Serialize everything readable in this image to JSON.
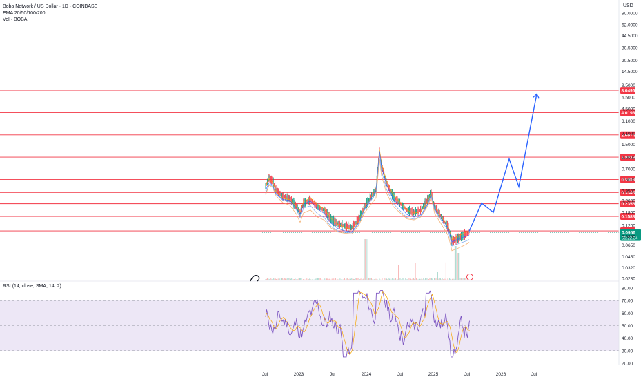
{
  "header": {
    "title": "Boba Network / US Dollar · 1D · COINBASE",
    "ema": "EMA 20/50/100/200",
    "vol": "Vol · BOBA",
    "currency": "USD"
  },
  "rsi": {
    "title": "RSI (14, close, SMA, 14, 2)",
    "ticks": [
      "80.00",
      "70.00",
      "60.00",
      "50.00",
      "40.00",
      "30.00",
      "20.00"
    ]
  },
  "chart_data": {
    "type": "line",
    "price_axis_ticks": [
      "90.0000",
      "62.0000",
      "44.5000",
      "30.5000",
      "20.5000",
      "14.5000",
      "9.5000",
      "6.5000",
      "4.5000",
      "3.1000",
      "2.1000",
      "1.5000",
      "1.0000",
      "0.7000",
      "0.5000",
      "0.3500",
      "0.2600",
      "0.1800",
      "0.1200",
      "0.0850",
      "0.0650",
      "0.0450",
      "0.0320",
      "0.0230"
    ],
    "horizontal_levels": [
      "8.0496",
      "4.0198",
      "2.0074",
      "1.0038",
      "0.5003",
      "0.3345",
      "0.2355",
      "0.1588",
      "0.1011"
    ],
    "current_price": "0.0956",
    "countdown": "09:22:34",
    "time_axis": [
      "Jul",
      "2023",
      "Jul",
      "2024",
      "Jul",
      "2025",
      "Jul",
      "2026",
      "Jul"
    ],
    "projection_path": [
      0.1,
      0.24,
      0.18,
      0.95,
      0.4,
      7.2
    ],
    "colors": {
      "level_line": "#f23645",
      "projection": "#2962ff",
      "current_price": "#089981",
      "rsi": "#7e57c2",
      "rsi_band": "#ede7f6"
    }
  }
}
